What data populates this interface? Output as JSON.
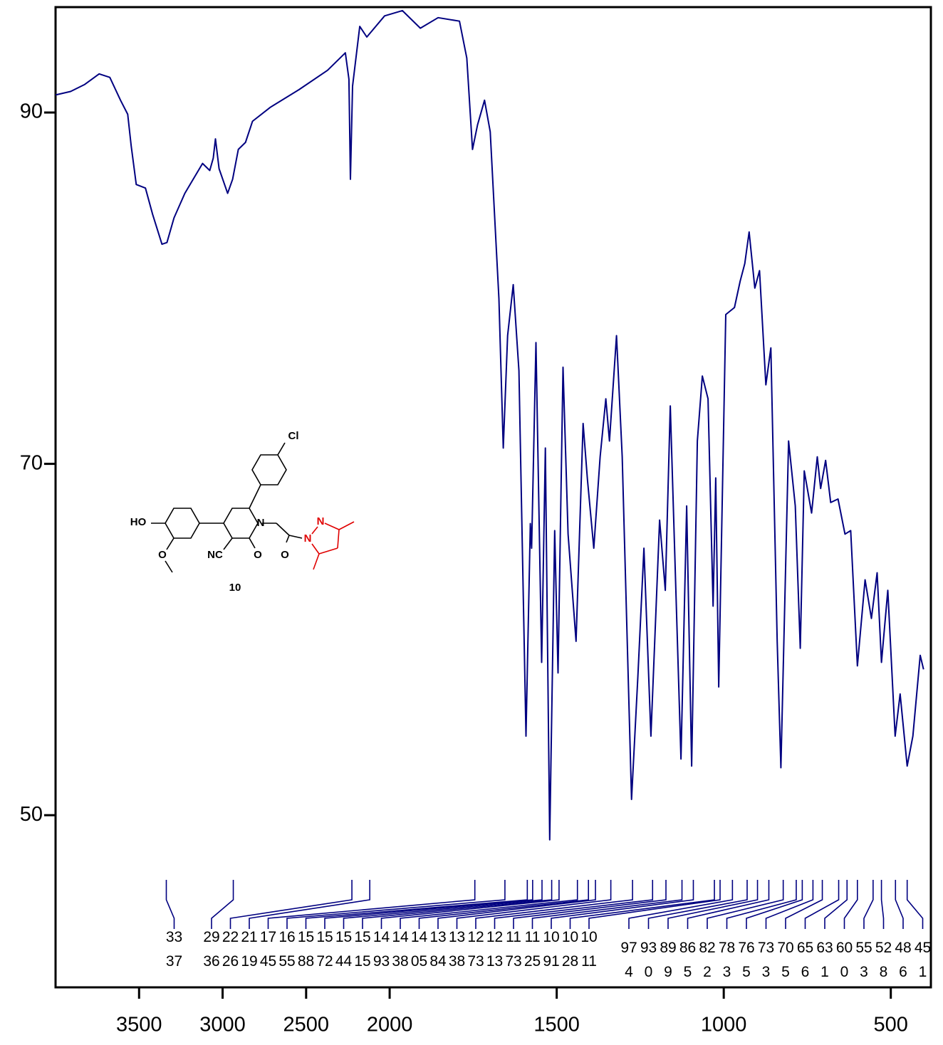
{
  "chart_data": {
    "type": "line",
    "xlim": [
      4000,
      380
    ],
    "x_break": 2000,
    "ylim": [
      40.2,
      96
    ],
    "xticks": [
      3500,
      3000,
      2500,
      2000,
      1500,
      1000,
      500
    ],
    "yticks": [
      50,
      70,
      90
    ],
    "series": [
      {
        "color": "#000080",
        "x": [
          4000,
          3910,
          3825,
          3739,
          3675,
          3611,
          3568,
          3547,
          3517,
          3462,
          3419,
          3363,
          3333,
          3291,
          3226,
          3120,
          3077,
          3056,
          3043,
          3021,
          2970,
          2940,
          2906,
          2863,
          2821,
          2714,
          2543,
          2372,
          2265,
          2244,
          2235,
          2222,
          2179,
          2137,
          2030,
          1962,
          1908,
          1855,
          1791,
          1769,
          1752,
          1737,
          1716,
          1699,
          1673,
          1660,
          1647,
          1630,
          1613,
          1592,
          1579,
          1575,
          1562,
          1545,
          1534,
          1521,
          1506,
          1496,
          1481,
          1466,
          1442,
          1421,
          1408,
          1389,
          1370,
          1353,
          1342,
          1321,
          1304,
          1276,
          1257,
          1239,
          1218,
          1192,
          1175,
          1160,
          1128,
          1111,
          1096,
          1079,
          1064,
          1047,
          1032,
          1024,
          1015,
          994,
          968,
          951,
          937,
          924,
          907,
          893,
          874,
          859,
          840,
          829,
          806,
          786,
          771,
          759,
          737,
          720,
          710,
          695,
          680,
          658,
          637,
          620,
          600,
          577,
          558,
          541,
          528,
          509,
          487,
          472,
          451,
          434,
          412,
          402
        ],
        "values": [
          91.0,
          91.2,
          91.6,
          92.2,
          92.0,
          90.7,
          89.9,
          88.1,
          85.9,
          85.7,
          84.2,
          82.5,
          82.6,
          84.0,
          85.4,
          87.1,
          86.7,
          87.4,
          88.5,
          86.8,
          85.4,
          86.2,
          87.9,
          88.3,
          89.5,
          90.3,
          91.3,
          92.4,
          93.4,
          91.9,
          86.2,
          91.5,
          94.9,
          94.3,
          95.5,
          95.8,
          94.8,
          95.4,
          95.2,
          93.1,
          87.9,
          89.3,
          90.7,
          88.9,
          79.4,
          70.9,
          77.3,
          80.2,
          75.3,
          54.5,
          66.6,
          65.2,
          76.9,
          58.7,
          70.9,
          48.6,
          66.2,
          58.1,
          75.5,
          66.0,
          59.9,
          72.3,
          69.1,
          65.2,
          70.4,
          73.7,
          71.3,
          77.3,
          70.4,
          50.9,
          57.9,
          65.2,
          54.5,
          66.8,
          62.8,
          73.3,
          53.2,
          67.6,
          52.8,
          71.3,
          75.0,
          73.7,
          61.9,
          69.2,
          57.3,
          78.5,
          78.9,
          80.4,
          81.4,
          83.2,
          80.0,
          81.0,
          74.5,
          76.6,
          59.9,
          52.7,
          71.3,
          67.6,
          59.5,
          69.6,
          67.2,
          70.4,
          68.6,
          70.2,
          67.8,
          68.0,
          66.0,
          66.2,
          58.5,
          63.4,
          61.2,
          63.8,
          58.7,
          62.8,
          54.5,
          56.9,
          52.8,
          54.5,
          59.1,
          58.3
        ]
      }
    ],
    "peaks": [
      3337,
      2936,
      2226,
      2119,
      1745,
      1655,
      1588,
      1572,
      1544,
      1515,
      1493,
      1438,
      1405,
      1384,
      1338,
      1273,
      1213,
      1173,
      1125,
      1091,
      1028,
      1011,
      974,
      930,
      899,
      865,
      822,
      783,
      765,
      733,
      705,
      656,
      631,
      600,
      553,
      528,
      486,
      451
    ],
    "annotations": [
      "Cl",
      "HO",
      "O",
      "NC",
      "O",
      "O",
      "N",
      "N",
      "N",
      "10"
    ]
  }
}
